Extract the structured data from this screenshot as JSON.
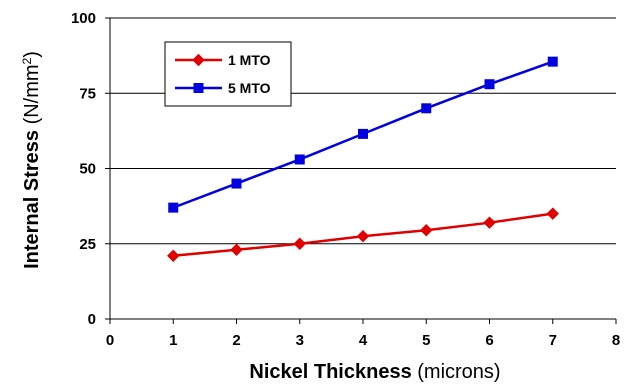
{
  "chart_data": {
    "type": "line",
    "xlabel": {
      "main": "Nickel Thickness",
      "unit": " (microns)"
    },
    "ylabel": {
      "main": "Internal Stress",
      "unit_pre": " (N/mm",
      "unit_sup": "2",
      "unit_post": ")"
    },
    "xlim": [
      0,
      8
    ],
    "ylim": [
      0,
      100
    ],
    "xticks": [
      "0",
      "1",
      "2",
      "3",
      "4",
      "5",
      "6",
      "7",
      "8"
    ],
    "yticks": [
      "0",
      "25",
      "50",
      "75",
      "100"
    ],
    "grid": "horizontal",
    "legend": {
      "placement": "top-left"
    },
    "series": [
      {
        "name": "1 MTO",
        "color": "#e00000",
        "marker": "diamond",
        "x": [
          1,
          2,
          3,
          4,
          5,
          6,
          7
        ],
        "y": [
          21,
          23,
          25,
          27.5,
          29.5,
          32,
          35
        ]
      },
      {
        "name": "5 MTO",
        "color": "#0000e0",
        "marker": "square",
        "x": [
          1,
          2,
          3,
          4,
          5,
          6,
          7
        ],
        "y": [
          37,
          45,
          53,
          61.5,
          70,
          78,
          85.5
        ]
      }
    ]
  }
}
